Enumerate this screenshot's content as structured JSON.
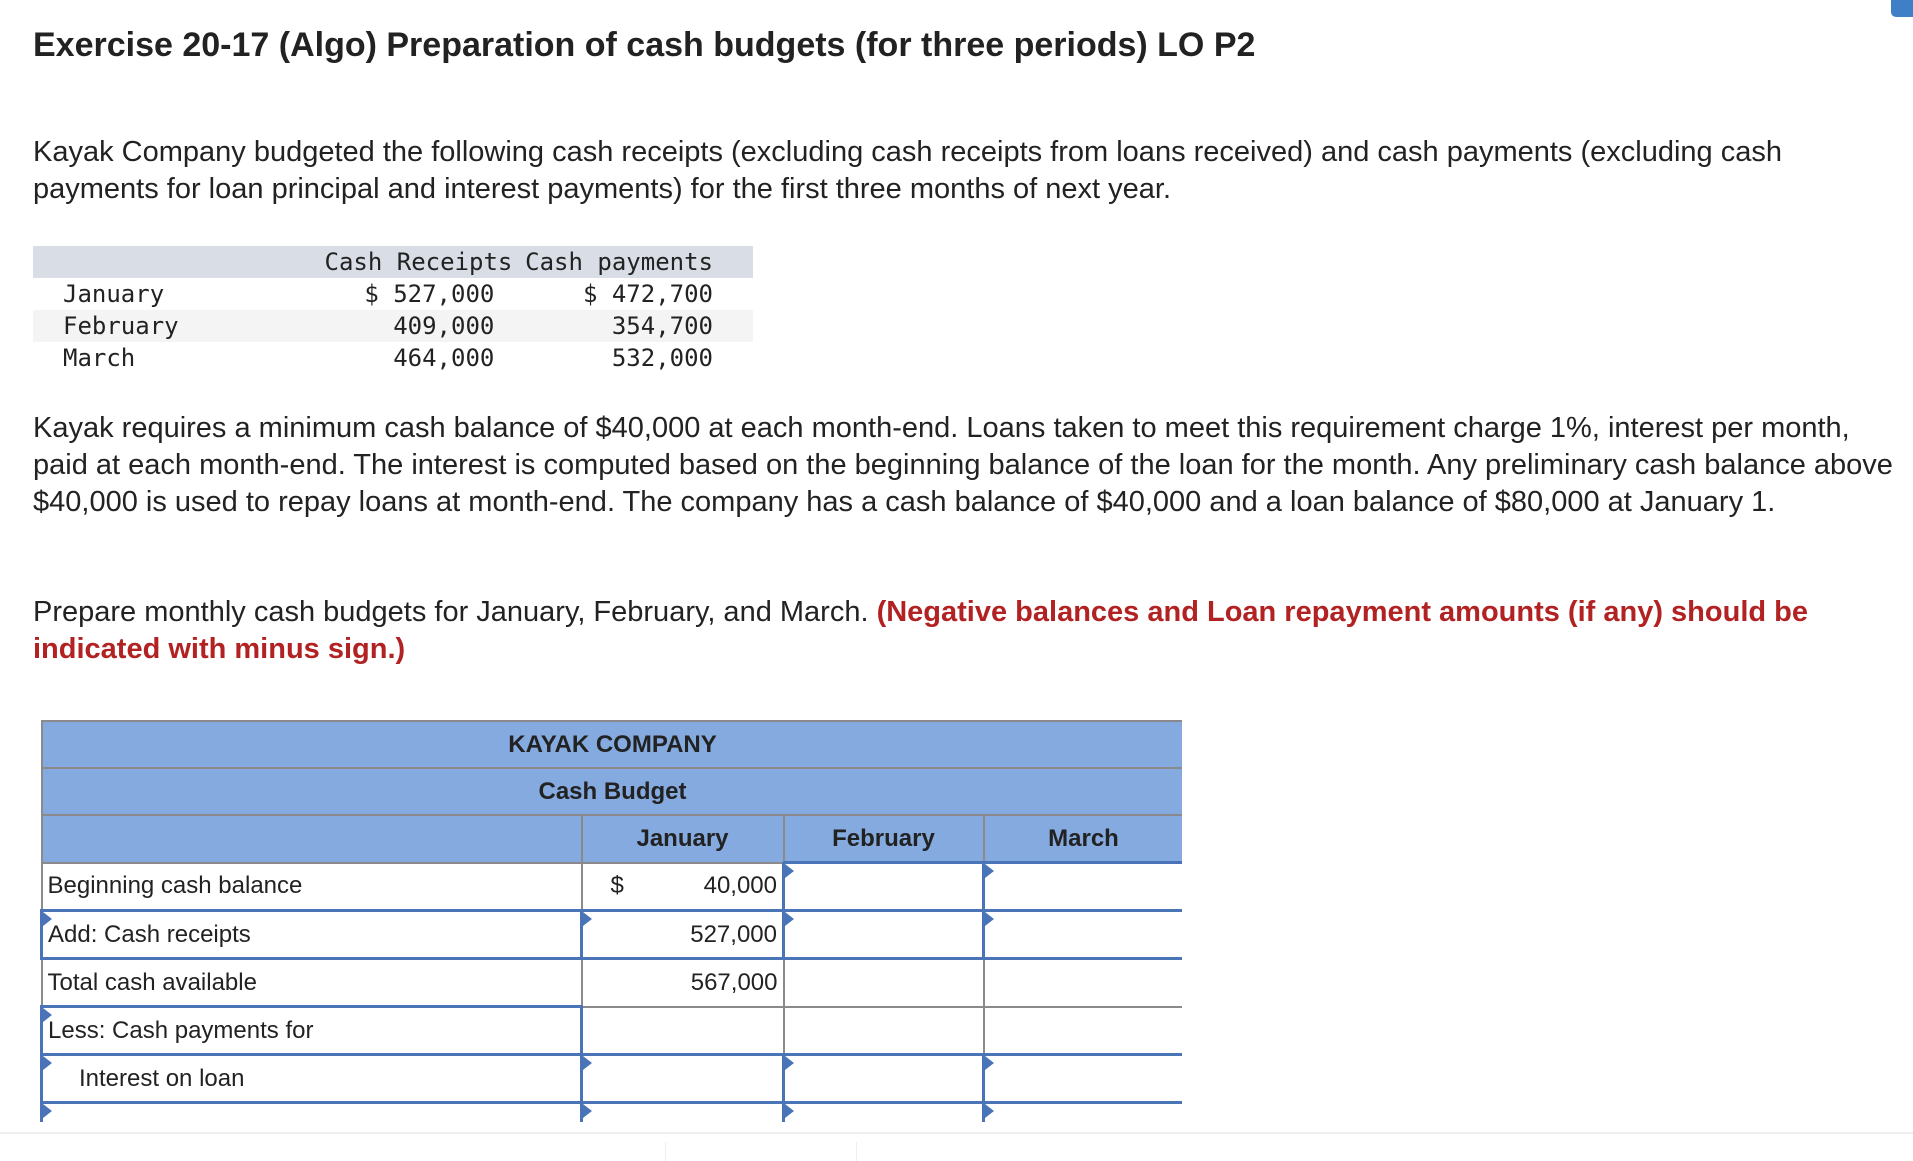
{
  "title": "Exercise 20-17 (Algo) Preparation of cash budgets (for three periods) LO P2",
  "intro": "Kayak Company budgeted the following cash receipts (excluding cash receipts from loans received) and cash payments (excluding cash payments for loan principal and interest payments) for the first three months of next year.",
  "given_table": {
    "headers": [
      "",
      "Cash Receipts",
      "Cash payments"
    ],
    "rows": [
      {
        "month": "January",
        "receipts": "$ 527,000",
        "payments": "$ 472,700"
      },
      {
        "month": "February",
        "receipts": "409,000",
        "payments": "354,700"
      },
      {
        "month": "March",
        "receipts": "464,000",
        "payments": "532,000"
      }
    ]
  },
  "requirements": "Kayak requires a minimum cash balance of $40,000 at each month-end. Loans taken to meet this requirement charge 1%, interest per month, paid at each month-end. The interest is computed based on the beginning balance of the loan for the month. Any preliminary cash balance above $40,000 is used to repay loans at month-end. The company has a cash balance of  $40,000 and a loan balance of $80,000 at January 1.",
  "instruction": "Prepare monthly cash budgets for January, February, and March. ",
  "instruction_note": "(Negative balances and Loan repayment amounts (if any) should be indicated with minus sign.)",
  "budget": {
    "company": "KAYAK COMPANY",
    "subtitle": "Cash Budget",
    "columns": [
      "January",
      "February",
      "March"
    ],
    "rows": [
      {
        "label": "Beginning cash balance",
        "jan_prefix": "$",
        "jan": "40,000",
        "feb": "",
        "mar": ""
      },
      {
        "label": "Add: Cash receipts",
        "jan": "527,000",
        "feb": "",
        "mar": ""
      },
      {
        "label": "Total cash available",
        "jan": "567,000",
        "feb": "",
        "mar": ""
      },
      {
        "label": "Less: Cash payments for",
        "jan": "",
        "feb": "",
        "mar": ""
      },
      {
        "label": "Interest on loan",
        "jan": "",
        "feb": "",
        "mar": ""
      },
      {
        "label": "",
        "jan": "",
        "feb": "",
        "mar": ""
      }
    ]
  }
}
